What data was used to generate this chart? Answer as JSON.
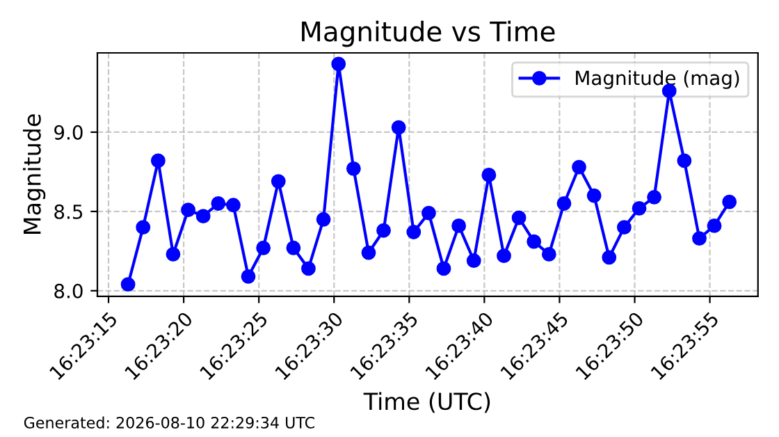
{
  "chart_data": {
    "type": "line",
    "title": "Magnitude vs Time",
    "xlabel": "Time (UTC)",
    "ylabel": "Magnitude",
    "x": [
      16.387861,
      16.388139,
      16.388417,
      16.388694,
      16.388972,
      16.38925,
      16.389528,
      16.389806,
      16.390083,
      16.390361,
      16.390639,
      16.390917,
      16.391194,
      16.391472,
      16.39175,
      16.392028,
      16.392306,
      16.392583,
      16.392861,
      16.393139,
      16.393417,
      16.393694,
      16.393972,
      16.39425,
      16.394528,
      16.394806,
      16.395083,
      16.395361,
      16.395639,
      16.395917,
      16.396194,
      16.396472,
      16.39675,
      16.397028,
      16.397306,
      16.397583,
      16.397861,
      16.398139,
      16.398417,
      16.398694,
      16.398972
    ],
    "series": [
      {
        "name": "Magnitude (mag)",
        "color": "#0000ff",
        "values": [
          8.04,
          8.4,
          8.82,
          8.23,
          8.51,
          8.47,
          8.55,
          8.54,
          8.09,
          8.27,
          8.69,
          8.27,
          8.14,
          8.45,
          9.43,
          8.77,
          8.24,
          8.38,
          9.03,
          8.37,
          8.49,
          8.14,
          8.41,
          8.19,
          8.73,
          8.22,
          8.46,
          8.31,
          8.23,
          8.55,
          8.78,
          8.6,
          8.21,
          8.4,
          8.52,
          8.59,
          9.26,
          8.82,
          8.33,
          8.41,
          8.56
        ]
      }
    ],
    "xlim": [
      16.387294,
      16.3995
    ],
    "xticks": [
      {
        "value": 16.3875,
        "label": "16:23:15"
      },
      {
        "value": 16.388889,
        "label": "16:23:20"
      },
      {
        "value": 16.390278,
        "label": "16:23:25"
      },
      {
        "value": 16.391667,
        "label": "16:23:30"
      },
      {
        "value": 16.393056,
        "label": "16:23:35"
      },
      {
        "value": 16.394444,
        "label": "16:23:40"
      },
      {
        "value": 16.395833,
        "label": "16:23:45"
      },
      {
        "value": 16.397222,
        "label": "16:23:50"
      },
      {
        "value": 16.398611,
        "label": "16:23:55"
      }
    ],
    "ylim": [
      7.965,
      9.5
    ],
    "yticks": [
      {
        "value": 8.0,
        "label": "8.0"
      },
      {
        "value": 8.5,
        "label": "8.5"
      },
      {
        "value": 9.0,
        "label": "9.0"
      }
    ],
    "grid": true,
    "legend": "top right",
    "marker": "circle",
    "line_style": "solid",
    "annotations": [
      "Generated: 2026-08-10 22:29:34 UTC"
    ]
  }
}
